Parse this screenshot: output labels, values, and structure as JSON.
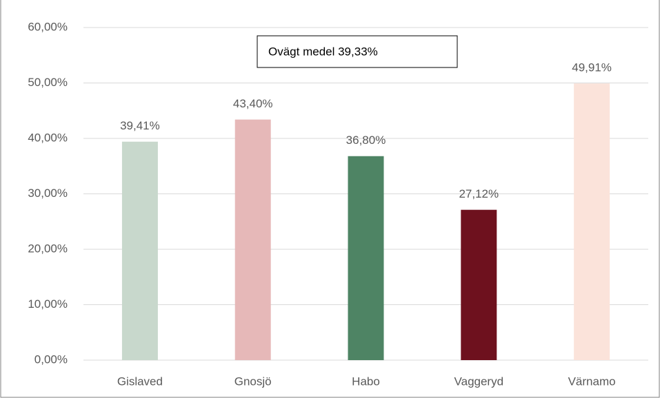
{
  "chart_data": {
    "type": "bar",
    "annotation": "Ovägt medel 39,33%",
    "categories": [
      "Gislaved",
      "Gnosjö",
      "Habo",
      "Vaggeryd",
      "Värnamo"
    ],
    "values": [
      39.41,
      43.4,
      36.8,
      27.12,
      49.91
    ],
    "value_labels": [
      "39,41%",
      "43,40%",
      "36,80%",
      "27,12%",
      "49,91%"
    ],
    "colors": [
      "#c8d8cc",
      "#e6b8b8",
      "#4e8464",
      "#6e111e",
      "#fbe3da"
    ],
    "ylim": [
      0,
      60
    ],
    "yticks": [
      {
        "value": 0,
        "label": "0,00%"
      },
      {
        "value": 10,
        "label": "10,00%"
      },
      {
        "value": 20,
        "label": "20,00%"
      },
      {
        "value": 30,
        "label": "30,00%"
      },
      {
        "value": 40,
        "label": "40,00%"
      },
      {
        "value": 50,
        "label": "50,00%"
      },
      {
        "value": 60,
        "label": "60,00%"
      }
    ],
    "grid": true
  }
}
